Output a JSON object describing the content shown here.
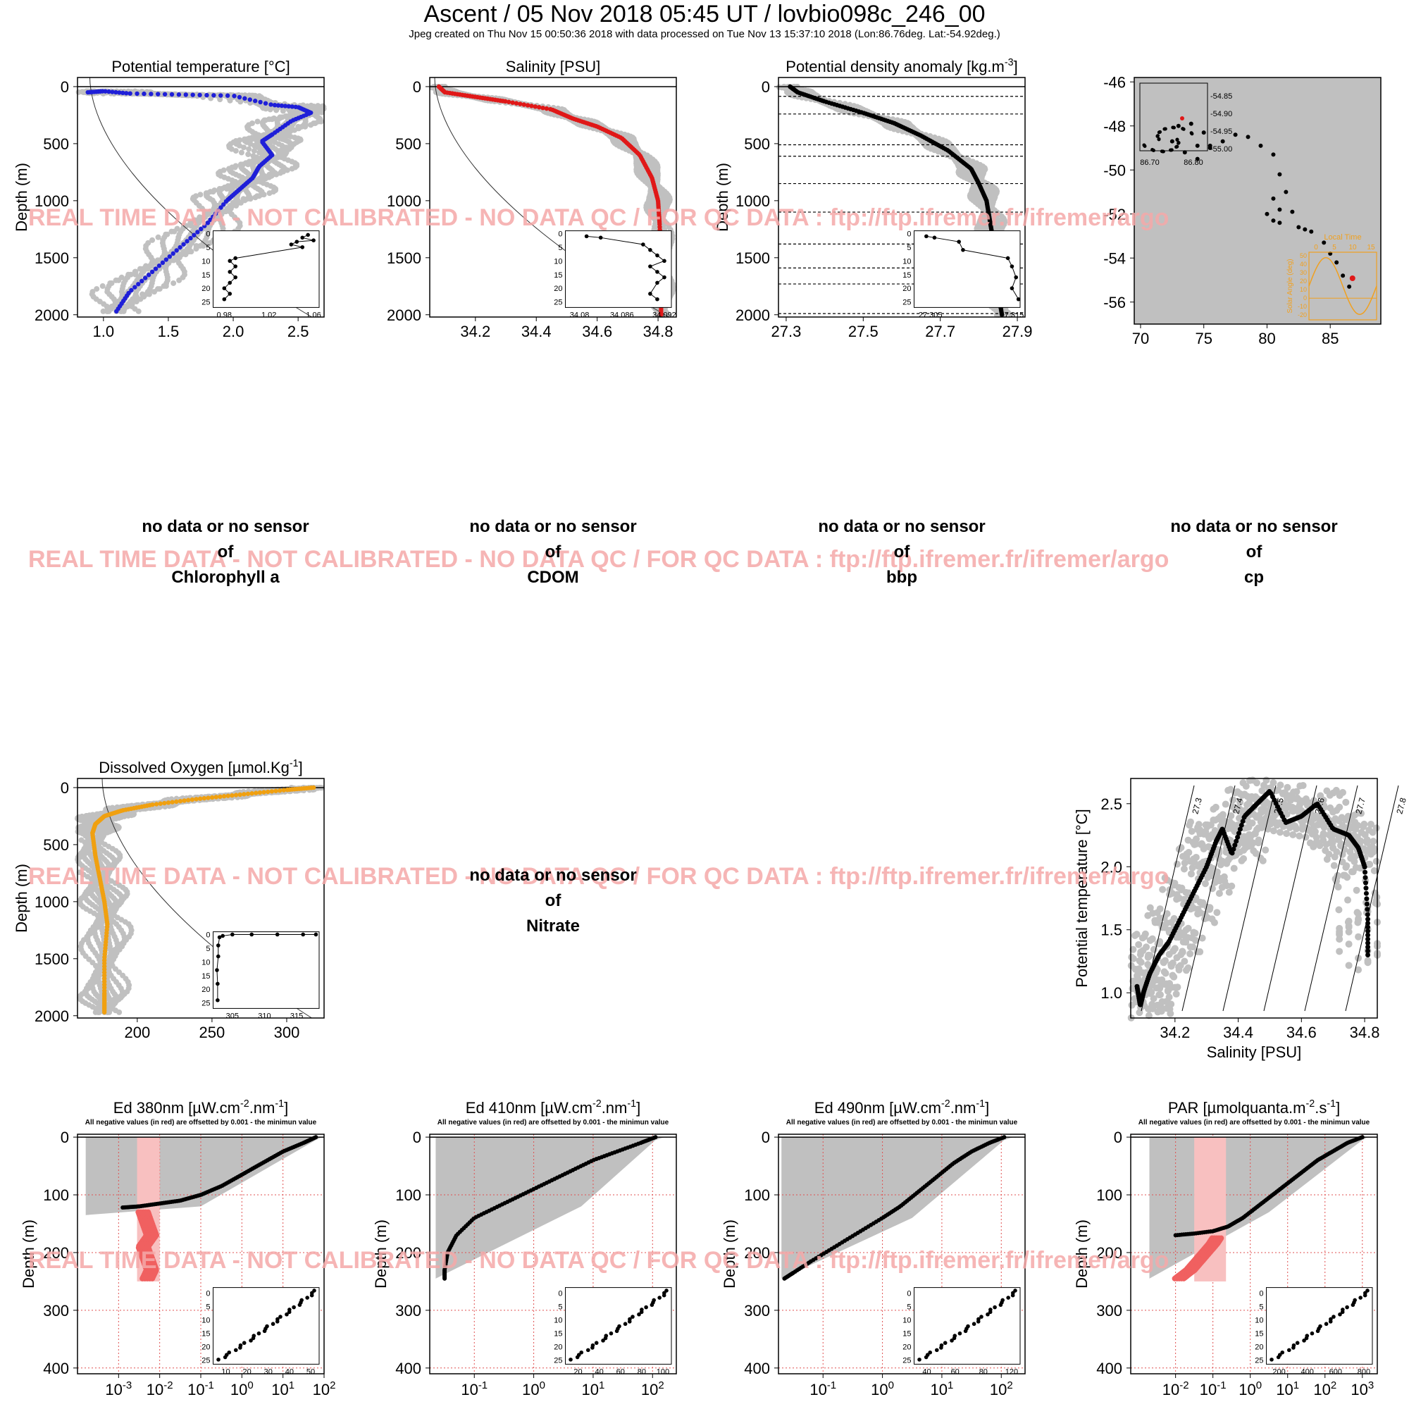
{
  "title": "Ascent / 05 Nov 2018 05:45 UT /  lovbio098c_246_00",
  "subtitle": "Jpeg created on Thu Nov 15 00:50:36 2018 with data processed on Tue Nov 13 15:37:10 2018 (Lon:86.76deg. Lat:-54.92deg.)",
  "watermark": "REAL TIME DATA - NOT CALIBRATED - NO DATA QC   /  FOR QC DATA : ftp://ftp.ifremer.fr/ifremer/argo",
  "colors": {
    "background_cloud": "#c0c0c0",
    "temperature": "#1f1fd8",
    "salinity": "#e01818",
    "density": "#000000",
    "oxygen": "#f0a010",
    "negative": "#f06060",
    "watermark": "#f4a8a8",
    "map_inset": "#f0a020"
  },
  "no_data": {
    "line1": "no data or no sensor",
    "line2": "of",
    "chlorophyll": "Chlorophyll a",
    "cdom": "CDOM",
    "bbp": "bbp",
    "cp": "cp",
    "nitrate": "Nitrate"
  },
  "chart_data": [
    {
      "id": "temperature",
      "type": "scatter",
      "title": "Potential temperature [°C]",
      "ylabel": "Depth (m)",
      "xlim": [
        0.8,
        2.7
      ],
      "ylim": [
        2020,
        -80
      ],
      "xticks": [
        1.0,
        1.5,
        2.0,
        2.5
      ],
      "xtick_labels": [
        "1.0",
        "1.5",
        "2.0",
        "2.5"
      ],
      "yticks": [
        0,
        500,
        1000,
        1500,
        2000
      ],
      "series": [
        {
          "x": [
            0.88,
            1.0,
            1.2,
            1.6,
            2.0,
            2.3,
            2.5,
            2.6,
            2.45,
            2.3,
            2.22,
            2.3,
            2.2,
            2.15,
            2.05,
            1.95,
            1.8,
            1.6,
            1.4,
            1.2,
            1.1
          ],
          "y": [
            50,
            40,
            60,
            70,
            80,
            160,
            180,
            230,
            300,
            420,
            480,
            600,
            700,
            800,
            900,
            1000,
            1200,
            1400,
            1600,
            1800,
            1970
          ]
        }
      ],
      "inset": {
        "xlim": [
          0.97,
          1.065
        ],
        "ylim": [
          27,
          -1
        ],
        "xticks": [
          0.98,
          1.02,
          1.06
        ],
        "yticks": [
          0,
          5,
          10,
          15,
          20,
          25
        ],
        "x": [
          1.055,
          1.05,
          1.06,
          1.045,
          1.04,
          1.05,
          0.99,
          0.985,
          0.99,
          0.985,
          0.99,
          0.985,
          0.98,
          0.985,
          0.98
        ],
        "y": [
          0.5,
          1.5,
          2.5,
          3,
          4,
          5,
          9,
          10,
          12,
          14,
          16,
          18,
          20,
          22,
          24
        ]
      }
    },
    {
      "id": "salinity",
      "type": "scatter",
      "title": "Salinity [PSU]",
      "ylabel": "",
      "xlim": [
        34.05,
        34.86
      ],
      "ylim": [
        2020,
        -80
      ],
      "xticks": [
        34.2,
        34.4,
        34.6,
        34.8
      ],
      "xtick_labels": [
        "34.2",
        "34.4",
        "34.6",
        "34.8"
      ],
      "yticks": [
        0,
        500,
        1000,
        1500,
        2000
      ],
      "series": [
        {
          "x": [
            34.08,
            34.1,
            34.2,
            34.3,
            34.45,
            34.52,
            34.6,
            34.68,
            34.74,
            34.78,
            34.8,
            34.805,
            34.81,
            34.81,
            34.81
          ],
          "y": [
            0,
            50,
            90,
            130,
            200,
            280,
            350,
            450,
            600,
            800,
            1000,
            1200,
            1500,
            1800,
            2000
          ]
        }
      ],
      "inset": {
        "xlim": [
          34.078,
          34.093
        ],
        "ylim": [
          27,
          -1
        ],
        "xticks": [
          34.08,
          34.086,
          34.092
        ],
        "yticks": [
          0,
          5,
          10,
          15,
          20,
          25
        ],
        "x": [
          34.081,
          34.083,
          34.089,
          34.09,
          34.091,
          34.092,
          34.09,
          34.091,
          34.092,
          34.091,
          34.09,
          34.091
        ],
        "y": [
          1,
          1.5,
          4,
          6,
          8,
          10,
          12,
          14,
          16,
          18,
          22,
          24
        ]
      }
    },
    {
      "id": "density",
      "type": "scatter",
      "title": "Potential density anomaly [kg.m",
      "title_sup": "-3",
      "title_end": "]",
      "ylabel": "Depth (m)",
      "xlim": [
        27.28,
        27.92
      ],
      "ylim": [
        2020,
        -80
      ],
      "xticks": [
        27.3,
        27.5,
        27.7,
        27.9
      ],
      "xtick_labels": [
        "27.3",
        "27.5",
        "27.7",
        "27.9"
      ],
      "yticks": [
        0,
        500,
        1000,
        1500,
        2000
      ],
      "hlines": [
        85,
        240,
        510,
        610,
        850,
        1100,
        1380,
        1590,
        1730,
        1990
      ],
      "series": [
        {
          "x": [
            27.31,
            27.33,
            27.4,
            27.5,
            27.58,
            27.65,
            27.72,
            27.78,
            27.8,
            27.82,
            27.83,
            27.84,
            27.85,
            27.85,
            27.86
          ],
          "y": [
            0,
            50,
            130,
            230,
            320,
            430,
            560,
            720,
            850,
            1000,
            1200,
            1400,
            1600,
            1800,
            2000
          ]
        }
      ],
      "inset": {
        "xlim": [
          27.303,
          27.316
        ],
        "ylim": [
          27,
          -1
        ],
        "xticks": [
          27.305,
          27.315
        ],
        "yticks": [
          0,
          5,
          10,
          15,
          20,
          25
        ],
        "x": [
          27.3045,
          27.3055,
          27.3085,
          27.309,
          27.3145,
          27.315,
          27.3155,
          27.315,
          27.3158
        ],
        "y": [
          1,
          1.5,
          3,
          6,
          9,
          12,
          16,
          20,
          24
        ]
      }
    },
    {
      "id": "map",
      "type": "scatter",
      "title": "",
      "xlim": [
        69.5,
        89
      ],
      "ylim": [
        -57,
        -45.8
      ],
      "xticks": [
        70,
        75,
        80,
        85
      ],
      "xtick_labels": [
        "70",
        "75",
        "80",
        "85"
      ],
      "yticks": [
        -46,
        -48,
        -50,
        -52,
        -54,
        -56
      ],
      "ytick_labels": [
        "-46",
        "-48",
        "-50",
        "-52",
        "-54",
        "-56"
      ],
      "series": [
        {
          "x": [
            72.5,
            73,
            74,
            75,
            75.5,
            74.5,
            73.5,
            74.5,
            75.5,
            76.5,
            77.5,
            78.5,
            79.5,
            80.5,
            81,
            81.5,
            80.5,
            81,
            80,
            80.5,
            81,
            82.5,
            83,
            82,
            83.5,
            84.5,
            85,
            85.5,
            86,
            86.5
          ],
          "y": [
            -48.7,
            -48,
            -47.9,
            -48.3,
            -49,
            -49.5,
            -49.2,
            -48.9,
            -48.9,
            -48.7,
            -48.4,
            -48.5,
            -48.9,
            -49.3,
            -50.2,
            -51,
            -51.3,
            -51.8,
            -52,
            -52.3,
            -52.4,
            -52.6,
            -52.7,
            -51.9,
            -52.8,
            -53.3,
            -53.8,
            -54.2,
            -54.8,
            -55.3
          ]
        }
      ],
      "current": {
        "x": 86.76,
        "y": -54.92
      },
      "inset_labels": [
        "-54.85",
        "-54.90",
        "-54.95",
        "-55.00",
        "86.70",
        "86.80"
      ],
      "solar_inset": {
        "title": "Local Time",
        "ylabel": "Solar Angle (deg)",
        "xticks": [
          "0",
          "5",
          "10",
          "15"
        ],
        "yticks": [
          "50",
          "40",
          "30",
          "20",
          "10",
          "0",
          "-10",
          "-20"
        ]
      }
    },
    {
      "id": "oxygen",
      "type": "scatter",
      "title": "Dissolved Oxygen [µmol.Kg",
      "title_sup": "-1",
      "title_end": "]",
      "ylabel": "Depth (m)",
      "xlim": [
        160,
        325
      ],
      "ylim": [
        2020,
        -80
      ],
      "xticks": [
        200,
        250,
        300
      ],
      "xtick_labels": [
        "200",
        "250",
        "300"
      ],
      "yticks": [
        0,
        500,
        1000,
        1500,
        2000
      ],
      "series": [
        {
          "x": [
            318,
            300,
            270,
            240,
            210,
            190,
            178,
            172,
            170,
            172,
            175,
            178,
            180,
            178,
            178,
            178
          ],
          "y": [
            0,
            20,
            60,
            100,
            150,
            200,
            250,
            320,
            400,
            600,
            800,
            1000,
            1200,
            1500,
            1800,
            1970
          ]
        }
      ],
      "inset": {
        "xlim": [
          302,
          318.5
        ],
        "ylim": [
          27,
          -1
        ],
        "xticks": [
          305,
          310,
          315
        ],
        "yticks": [
          0,
          5,
          10,
          15,
          20,
          25
        ],
        "x": [
          318,
          316,
          312,
          308,
          305,
          303.5,
          303,
          302.8,
          302.8,
          302.6,
          302.7,
          302.7
        ],
        "y": [
          0,
          0,
          0,
          0,
          0,
          0.5,
          1,
          4,
          8,
          13,
          18,
          24
        ]
      }
    },
    {
      "id": "ts",
      "type": "scatter",
      "title": "",
      "xlabel": "Salinity [PSU]",
      "ylabel": "Potential temperature [°C]",
      "xlim": [
        34.06,
        34.84
      ],
      "ylim": [
        0.8,
        2.7
      ],
      "xticks": [
        34.2,
        34.4,
        34.6,
        34.8
      ],
      "xtick_labels": [
        "34.2",
        "34.4",
        "34.6",
        "34.8"
      ],
      "yticks": [
        1.0,
        1.5,
        2.0,
        2.5
      ],
      "ytick_labels": [
        "1.0",
        "1.5",
        "2.0",
        "2.5"
      ],
      "isopycnals": [
        "27.3",
        "27.4",
        "27.5",
        "27.6",
        "27.7",
        "27.8"
      ],
      "series": [
        {
          "x": [
            34.08,
            34.09,
            34.1,
            34.12,
            34.15,
            34.18,
            34.22,
            34.26,
            34.3,
            34.33,
            34.35,
            34.38,
            34.42,
            34.46,
            34.5,
            34.55,
            34.6,
            34.65,
            34.7,
            34.75,
            34.78,
            34.8,
            34.81,
            34.81
          ],
          "y": [
            1.05,
            0.9,
            1.0,
            1.15,
            1.3,
            1.4,
            1.6,
            1.8,
            2.0,
            2.2,
            2.3,
            2.1,
            2.4,
            2.5,
            2.6,
            2.35,
            2.4,
            2.5,
            2.3,
            2.25,
            2.15,
            2.0,
            1.6,
            1.3
          ]
        }
      ]
    },
    {
      "id": "ed380",
      "type": "scatter",
      "title": "Ed 380nm [µW.cm",
      "title_sup": "-2",
      "title_mid": ".nm",
      "title_sup2": "-1",
      "title_end": "]",
      "subtitle": "All negative values (in red) are offsetted by 0.001 - the minimun value",
      "ylabel": "Depth (m)",
      "log": true,
      "xlim_exp": [
        -4,
        2
      ],
      "ylim": [
        410,
        -5
      ],
      "xticks_exp": [
        -3,
        -2,
        -1,
        0,
        1,
        2
      ],
      "yticks": [
        0,
        100,
        200,
        300,
        400
      ],
      "series": [
        {
          "x_exp": [
            1.8,
            1.5,
            1.0,
            0.5,
            0,
            -0.5,
            -1.0,
            -1.5,
            -2.0,
            -2.5,
            -2.9
          ],
          "y": [
            0,
            10,
            25,
            45,
            65,
            85,
            100,
            110,
            115,
            120,
            122
          ]
        }
      ],
      "negatives": {
        "x_exp": [
          -2.4,
          -2.3,
          -2.2,
          -2.4,
          -2.3,
          -2.2,
          -2.3
        ],
        "y": [
          130,
          150,
          170,
          190,
          210,
          230,
          245
        ]
      },
      "inset": {
        "xticks": [
          "10",
          "20",
          "30",
          "40",
          "50"
        ],
        "yticks": [
          0,
          5,
          10,
          15,
          20,
          25
        ]
      }
    },
    {
      "id": "ed410",
      "type": "scatter",
      "title": "Ed 410nm [µW.cm",
      "title_sup": "-2",
      "title_mid": ".nm",
      "title_sup2": "-1",
      "title_end": "]",
      "subtitle": "All negative values (in red) are offsetted by 0.001 - the minimun value",
      "ylabel": "Depth (m)",
      "log": true,
      "xlim_exp": [
        -1.75,
        2.4
      ],
      "ylim": [
        410,
        -5
      ],
      "xticks_exp": [
        -1,
        0,
        1,
        2
      ],
      "yticks": [
        0,
        100,
        200,
        300,
        400
      ],
      "series": [
        {
          "x_exp": [
            2.05,
            1.8,
            1.4,
            1.0,
            0.6,
            0.2,
            -0.2,
            -0.6,
            -1.0,
            -1.3,
            -1.45,
            -1.5,
            -1.5
          ],
          "y": [
            0,
            10,
            25,
            40,
            60,
            80,
            100,
            120,
            140,
            170,
            200,
            230,
            245
          ]
        }
      ],
      "inset": {
        "xticks": [
          "20",
          "40",
          "60",
          "80",
          "100"
        ],
        "yticks": [
          0,
          5,
          10,
          15,
          20,
          25
        ]
      }
    },
    {
      "id": "ed490",
      "type": "scatter",
      "title": "Ed 490nm [µW.cm",
      "title_sup": "-2",
      "title_mid": ".nm",
      "title_sup2": "-1",
      "title_end": "]",
      "subtitle": "All negative values (in red) are offsetted by 0.001 - the minimun value",
      "ylabel": "Depth (m)",
      "log": true,
      "xlim_exp": [
        -1.75,
        2.4
      ],
      "ylim": [
        410,
        -5
      ],
      "xticks_exp": [
        -1,
        0,
        1,
        2
      ],
      "yticks": [
        0,
        100,
        200,
        300,
        400
      ],
      "series": [
        {
          "x_exp": [
            2.05,
            1.8,
            1.5,
            1.2,
            0.9,
            0.6,
            0.3,
            0,
            -0.4,
            -0.8,
            -1.2,
            -1.5,
            -1.65
          ],
          "y": [
            0,
            10,
            25,
            45,
            70,
            95,
            120,
            140,
            165,
            190,
            215,
            235,
            245
          ]
        }
      ],
      "inset": {
        "xticks": [
          "40",
          "60",
          "80",
          "120"
        ],
        "yticks": [
          0,
          5,
          10,
          15,
          20,
          25
        ]
      }
    },
    {
      "id": "par",
      "type": "scatter",
      "title": "PAR [µmolquanta.m",
      "title_sup": "-2",
      "title_mid": ".s",
      "title_sup2": "-1",
      "title_end": "]",
      "subtitle": "All negative values (in red) are offsetted by 0.001 - the minimun value",
      "ylabel": "Depth (m)",
      "log": true,
      "xlim_exp": [
        -3.2,
        3.4
      ],
      "ylim": [
        410,
        -5
      ],
      "xticks_exp": [
        -2,
        -1,
        0,
        1,
        2,
        3
      ],
      "yticks": [
        0,
        100,
        200,
        300,
        400
      ],
      "series": [
        {
          "x_exp": [
            3.0,
            2.6,
            2.2,
            1.8,
            1.4,
            1.0,
            0.6,
            0.2,
            -0.2,
            -0.6,
            -1.0,
            -1.5,
            -2.0
          ],
          "y": [
            0,
            10,
            25,
            40,
            60,
            80,
            100,
            120,
            140,
            155,
            163,
            167,
            170
          ]
        }
      ],
      "negatives": {
        "x_exp": [
          -0.9,
          -1.0,
          -1.2,
          -1.4,
          -1.6,
          -1.8,
          -1.9
        ],
        "y": [
          175,
          185,
          200,
          215,
          230,
          240,
          245
        ]
      },
      "inset": {
        "xticks": [
          "200",
          "400",
          "600",
          "800"
        ],
        "yticks": [
          0,
          5,
          10,
          15,
          20,
          25
        ]
      }
    }
  ]
}
